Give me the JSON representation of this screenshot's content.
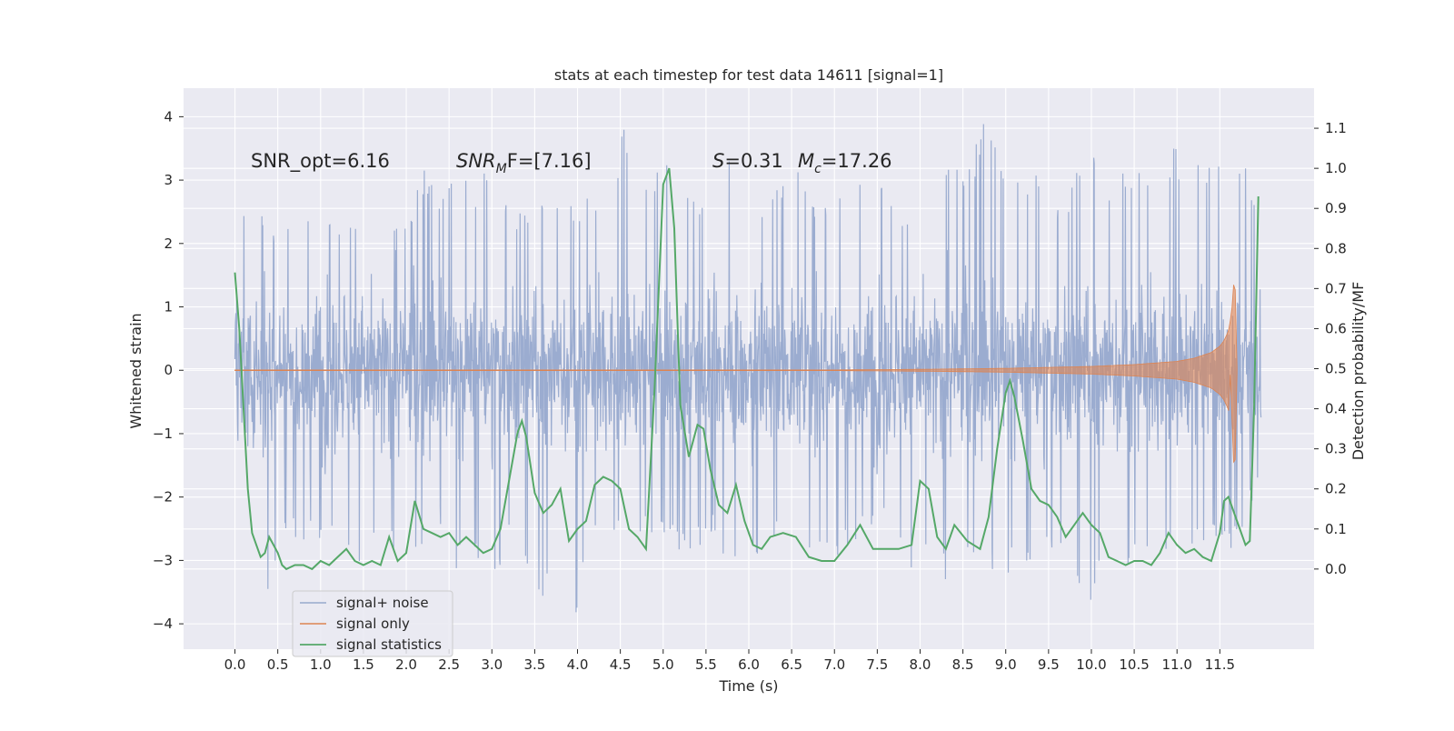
{
  "chart_data": {
    "type": "line",
    "title": "stats at each timestep for test data 14611 [signal=1]",
    "xlabel": "Time (s)",
    "ylabel_left": "Whitened strain",
    "ylabel_right": "Detection probability/MF",
    "xlim": [
      -0.6,
      12.6
    ],
    "ylim_left": [
      -4.4,
      4.45
    ],
    "ylim_right": [
      -0.2,
      1.2
    ],
    "x_ticks": [
      "0.0",
      "0.5",
      "1.0",
      "1.5",
      "2.0",
      "2.5",
      "3.0",
      "3.5",
      "4.0",
      "4.5",
      "5.0",
      "5.5",
      "6.0",
      "6.5",
      "7.0",
      "7.5",
      "8.0",
      "8.5",
      "9.0",
      "9.5",
      "10.0",
      "10.5",
      "11.0",
      "11.5"
    ],
    "y_ticks_left": [
      "4",
      "3",
      "2",
      "1",
      "0",
      "−1",
      "−2",
      "−3",
      "−4"
    ],
    "y_ticks_right": [
      "1.1",
      "1.0",
      "0.9",
      "0.8",
      "0.7",
      "0.6",
      "0.5",
      "0.4",
      "0.3",
      "0.2",
      "0.1",
      "0.0"
    ],
    "grid": true,
    "legend_position": "lower-left",
    "annotations": {
      "snr_opt": "SNR_opt=6.16",
      "snr_mf_main": "SNR",
      "snr_mf_sub": "M",
      "snr_mf_tail": "F=[7.16]",
      "s_main": "S",
      "s_tail": "=0.31",
      "mc_main": "M",
      "mc_sub": "c",
      "mc_tail": "=17.26"
    },
    "series": [
      {
        "name": "signal+ noise",
        "axis": "left",
        "color": "#97A9CD",
        "x_range": [
          0.0,
          11.98
        ],
        "envelope_upper": [
          2.05,
          2.9,
          2.3,
          2.6,
          2.4,
          2.7,
          2.5,
          2.6,
          2.9,
          2.4,
          2.5,
          3.2,
          2.7,
          3.3,
          2.8,
          3.5,
          2.7,
          2.5,
          2.9,
          3.0,
          2.6,
          2.8,
          3.2,
          4.0,
          2.9,
          3.5,
          3.4,
          2.7,
          2.8,
          3.6,
          3.0,
          2.7,
          3.0,
          3.3,
          2.6,
          3.1,
          3.2,
          3.0,
          3.3,
          2.6,
          2.9,
          3.1,
          3.6,
          3.3,
          4.1,
          3.1,
          3.0,
          3.2,
          2.7,
          3.0,
          3.9,
          3.1,
          3.3,
          3.1,
          3.6,
          3.5,
          3.3,
          3.4,
          3.5,
          3.5,
          2.3
        ],
        "envelope_lower": [
          -1.4,
          -2.9,
          -3.85,
          -2.6,
          -2.7,
          -2.9,
          -2.8,
          -3.1,
          -3.0,
          -2.9,
          -3.35,
          -2.7,
          -2.5,
          -3.3,
          -2.8,
          -3.6,
          -2.6,
          -3.05,
          -3.8,
          -2.9,
          -3.9,
          -2.8,
          -2.6,
          -3.0,
          -2.7,
          -2.8,
          -2.9,
          -2.9,
          -2.6,
          -3.3,
          -3.0,
          -2.9,
          -2.5,
          -2.8,
          -2.9,
          -3.2,
          -2.7,
          -2.7,
          -2.5,
          -2.9,
          -3.4,
          -2.9,
          -4.0,
          -2.8,
          -3.2,
          -3.4,
          -3.1,
          -2.9,
          -2.8,
          -3.2,
          -3.85,
          -2.9,
          -3.0,
          -3.3,
          -2.9,
          -3.1,
          -3.0,
          -2.8,
          -3.0,
          -2.5,
          -1.7
        ]
      },
      {
        "name": "signal only",
        "axis": "left",
        "color": "#DD8452",
        "x": [
          0.0,
          7.0,
          8.0,
          9.0,
          10.0,
          10.5,
          11.0,
          11.2,
          11.4,
          11.5,
          11.55,
          11.6,
          11.62,
          11.64,
          11.66,
          11.68,
          11.7
        ],
        "amplitude": [
          0.005,
          0.005,
          0.015,
          0.03,
          0.06,
          0.09,
          0.14,
          0.19,
          0.28,
          0.38,
          0.47,
          0.62,
          0.76,
          0.96,
          1.35,
          1.3,
          0.05
        ],
        "lower_tip": -1.45
      },
      {
        "name": "signal statistics",
        "axis": "right",
        "color": "#55A868",
        "x": [
          0.0,
          0.05,
          0.1,
          0.15,
          0.2,
          0.25,
          0.3,
          0.35,
          0.4,
          0.45,
          0.5,
          0.55,
          0.6,
          0.7,
          0.8,
          0.9,
          1.0,
          1.1,
          1.2,
          1.3,
          1.4,
          1.5,
          1.6,
          1.7,
          1.8,
          1.9,
          2.0,
          2.1,
          2.2,
          2.3,
          2.4,
          2.5,
          2.6,
          2.7,
          2.8,
          2.9,
          3.0,
          3.1,
          3.2,
          3.3,
          3.35,
          3.4,
          3.5,
          3.6,
          3.7,
          3.8,
          3.9,
          4.0,
          4.1,
          4.2,
          4.3,
          4.4,
          4.5,
          4.6,
          4.7,
          4.8,
          4.9,
          5.0,
          5.07,
          5.13,
          5.2,
          5.3,
          5.4,
          5.47,
          5.55,
          5.65,
          5.75,
          5.85,
          5.95,
          6.05,
          6.15,
          6.25,
          6.4,
          6.55,
          6.7,
          6.85,
          7.0,
          7.15,
          7.3,
          7.45,
          7.6,
          7.75,
          7.9,
          8.0,
          8.1,
          8.2,
          8.3,
          8.4,
          8.55,
          8.7,
          8.8,
          8.9,
          9.0,
          9.05,
          9.1,
          9.2,
          9.3,
          9.4,
          9.5,
          9.6,
          9.7,
          9.8,
          9.9,
          10.0,
          10.1,
          10.2,
          10.3,
          10.4,
          10.5,
          10.6,
          10.7,
          10.8,
          10.9,
          11.0,
          11.1,
          11.2,
          11.3,
          11.4,
          11.5,
          11.55,
          11.6,
          11.7,
          11.8,
          11.85,
          11.9,
          11.95
        ],
        "values": [
          0.74,
          0.6,
          0.4,
          0.2,
          0.09,
          0.06,
          0.03,
          0.04,
          0.08,
          0.06,
          0.04,
          0.01,
          0.0,
          0.01,
          0.01,
          0.0,
          0.02,
          0.01,
          0.03,
          0.05,
          0.02,
          0.01,
          0.02,
          0.01,
          0.08,
          0.02,
          0.04,
          0.17,
          0.1,
          0.09,
          0.08,
          0.09,
          0.06,
          0.08,
          0.06,
          0.04,
          0.05,
          0.1,
          0.22,
          0.34,
          0.37,
          0.33,
          0.19,
          0.14,
          0.16,
          0.2,
          0.07,
          0.1,
          0.12,
          0.21,
          0.23,
          0.22,
          0.2,
          0.1,
          0.08,
          0.05,
          0.45,
          0.96,
          1.0,
          0.85,
          0.41,
          0.28,
          0.36,
          0.35,
          0.25,
          0.16,
          0.14,
          0.21,
          0.12,
          0.06,
          0.05,
          0.08,
          0.09,
          0.08,
          0.03,
          0.02,
          0.02,
          0.06,
          0.11,
          0.05,
          0.05,
          0.05,
          0.06,
          0.22,
          0.2,
          0.08,
          0.05,
          0.11,
          0.07,
          0.05,
          0.13,
          0.3,
          0.44,
          0.47,
          0.43,
          0.32,
          0.2,
          0.17,
          0.16,
          0.13,
          0.08,
          0.11,
          0.14,
          0.11,
          0.09,
          0.03,
          0.02,
          0.01,
          0.02,
          0.02,
          0.01,
          0.04,
          0.09,
          0.06,
          0.04,
          0.05,
          0.03,
          0.02,
          0.09,
          0.17,
          0.18,
          0.12,
          0.06,
          0.07,
          0.4,
          0.93
        ]
      }
    ]
  }
}
